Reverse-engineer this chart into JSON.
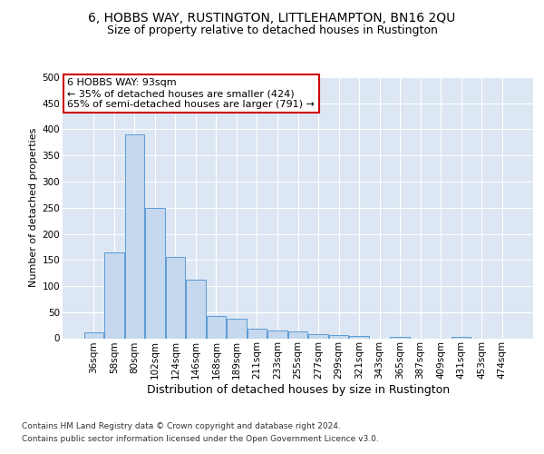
{
  "title": "6, HOBBS WAY, RUSTINGTON, LITTLEHAMPTON, BN16 2QU",
  "subtitle": "Size of property relative to detached houses in Rustington",
  "xlabel": "Distribution of detached houses by size in Rustington",
  "ylabel": "Number of detached properties",
  "bar_values": [
    12,
    165,
    390,
    250,
    155,
    113,
    42,
    38,
    18,
    15,
    13,
    8,
    6,
    4,
    0,
    3,
    0,
    0,
    3,
    0,
    0
  ],
  "bar_labels": [
    "36sqm",
    "58sqm",
    "80sqm",
    "102sqm",
    "124sqm",
    "146sqm",
    "168sqm",
    "189sqm",
    "211sqm",
    "233sqm",
    "255sqm",
    "277sqm",
    "299sqm",
    "321sqm",
    "343sqm",
    "365sqm",
    "387sqm",
    "409sqm",
    "431sqm",
    "453sqm",
    "474sqm"
  ],
  "bar_color": "#c5d8ee",
  "bar_edge_color": "#5b9bd5",
  "annotation_text": "6 HOBBS WAY: 93sqm\n← 35% of detached houses are smaller (424)\n65% of semi-detached houses are larger (791) →",
  "annotation_box_facecolor": "#ffffff",
  "annotation_box_edgecolor": "#cc0000",
  "ylim": [
    0,
    500
  ],
  "yticks": [
    0,
    50,
    100,
    150,
    200,
    250,
    300,
    350,
    400,
    450,
    500
  ],
  "bg_color": "#dde7f3",
  "grid_color": "#ffffff",
  "footer_line1": "Contains HM Land Registry data © Crown copyright and database right 2024.",
  "footer_line2": "Contains public sector information licensed under the Open Government Licence v3.0.",
  "title_fontsize": 10,
  "subtitle_fontsize": 9,
  "xlabel_fontsize": 9,
  "ylabel_fontsize": 8,
  "tick_fontsize": 7.5,
  "annotation_fontsize": 8,
  "footer_fontsize": 6.5
}
